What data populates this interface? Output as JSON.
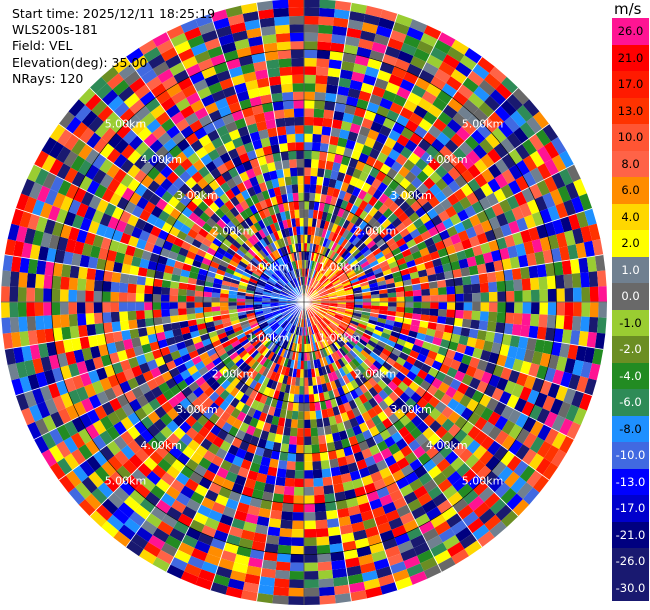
{
  "header": {
    "start_time": "Start time: 2025/12/11 18:25:19",
    "instrument": "WLS200s-181",
    "field": "Field: VEL",
    "elevation": "Elevation(deg): 35.00",
    "nrays": "NRays: 120"
  },
  "range_rings": [
    "1.00km",
    "2.00km",
    "3.00km",
    "4.00km",
    "5.00km"
  ],
  "colorbar": {
    "unit": "m/s",
    "levels": [
      {
        "label": "26.0",
        "color": "#ff1493"
      },
      {
        "label": "21.0",
        "color": "#ff0000"
      },
      {
        "label": "17.0",
        "color": "#ff1a00"
      },
      {
        "label": "13.0",
        "color": "#ff3300"
      },
      {
        "label": "10.0",
        "color": "#ff5533"
      },
      {
        "label": "8.0",
        "color": "#ff6347"
      },
      {
        "label": "6.0",
        "color": "#ff8c00"
      },
      {
        "label": "4.0",
        "color": "#ffd700"
      },
      {
        "label": "2.0",
        "color": "#ffff00"
      },
      {
        "label": "1.0",
        "color": "#708090"
      },
      {
        "label": "0.0",
        "color": "#696969"
      },
      {
        "label": "-1.0",
        "color": "#9acd32"
      },
      {
        "label": "-2.0",
        "color": "#6b8e23"
      },
      {
        "label": "-4.0",
        "color": "#228b22"
      },
      {
        "label": "-6.0",
        "color": "#2e8b57"
      },
      {
        "label": "-8.0",
        "color": "#1e90ff"
      },
      {
        "label": "-10.0",
        "color": "#4169e1"
      },
      {
        "label": "-13.0",
        "color": "#0000ff"
      },
      {
        "label": "-17.0",
        "color": "#0000cd"
      },
      {
        "label": "-21.0",
        "color": "#000080"
      },
      {
        "label": "-26.0",
        "color": "#191970"
      },
      {
        "label": "-30.0",
        "color": "#191970"
      }
    ]
  }
}
